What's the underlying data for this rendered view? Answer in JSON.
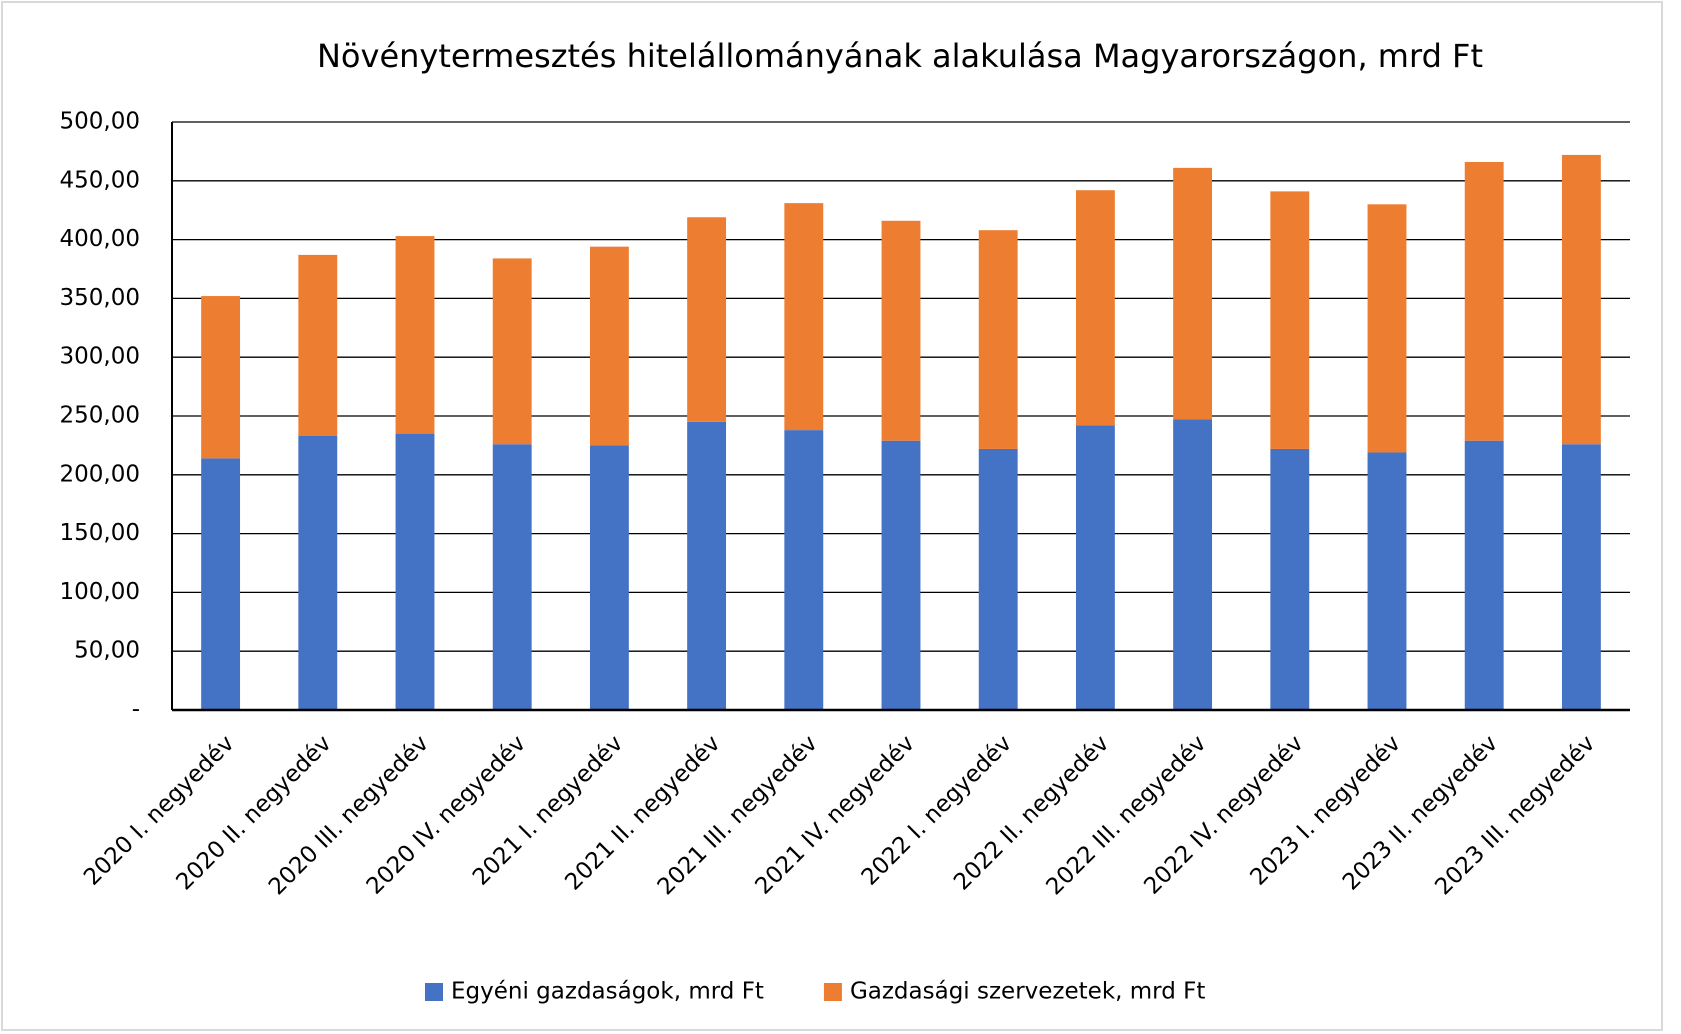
{
  "chart_data": {
    "type": "stacked_bar",
    "title": "Növénytermesztés hitelállományának alakulása Magyarországon, mrd Ft",
    "categories": [
      "2020 I. negyedév",
      "2020 II. negyedév",
      "2020 III. negyedév",
      "2020 IV. negyedév",
      "2021 I. negyedév",
      "2021 II. negyedév",
      "2021 III. negyedév",
      "2021 IV. negyedév",
      "2022 I. negyedév",
      "2022 II. negyedév",
      "2022 III. negyedév",
      "2022 IV. negyedév",
      "2023 I. negyedév",
      "2023 II. negyedév",
      "2023 III. negyedév"
    ],
    "series": [
      {
        "name": "Egyéni gazdaságok, mrd Ft",
        "color": "#4472c4",
        "values": [
          214,
          233,
          235,
          226,
          225,
          245,
          238,
          229,
          222,
          242,
          247,
          222,
          219,
          229,
          226
        ]
      },
      {
        "name": "Gazdasági szervezetek, mrd Ft",
        "color": "#ed7d31",
        "values": [
          138,
          154,
          168,
          158,
          169,
          174,
          193,
          187,
          186,
          200,
          214,
          219,
          211,
          237,
          246
        ]
      }
    ],
    "ylim": [
      0,
      500
    ],
    "yticks": [
      {
        "value": 0,
        "label": "-"
      },
      {
        "value": 50,
        "label": "50,00"
      },
      {
        "value": 100,
        "label": "100,00"
      },
      {
        "value": 150,
        "label": "150,00"
      },
      {
        "value": 200,
        "label": "200,00"
      },
      {
        "value": 250,
        "label": "250,00"
      },
      {
        "value": 300,
        "label": "300,00"
      },
      {
        "value": 350,
        "label": "350,00"
      },
      {
        "value": 400,
        "label": "400,00"
      },
      {
        "value": 450,
        "label": "450,00"
      },
      {
        "value": 500,
        "label": "500,00"
      }
    ],
    "grid": true,
    "legend": "bottom"
  }
}
